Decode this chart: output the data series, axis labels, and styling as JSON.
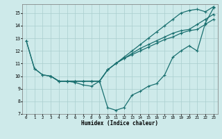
{
  "xlabel": "Humidex (Indice chaleur)",
  "bg_color": "#ceeaea",
  "grid_color": "#aacece",
  "line_color": "#1a7070",
  "xlim": [
    -0.5,
    23.5
  ],
  "ylim": [
    7,
    15.7
  ],
  "yticks": [
    7,
    8,
    9,
    10,
    11,
    12,
    13,
    14,
    15
  ],
  "xticks": [
    0,
    1,
    2,
    3,
    4,
    5,
    6,
    7,
    8,
    9,
    10,
    11,
    12,
    13,
    14,
    15,
    16,
    17,
    18,
    19,
    20,
    21,
    22,
    23
  ],
  "series1_x": [
    0,
    1,
    2,
    3,
    4,
    5,
    6,
    7,
    8,
    9,
    10,
    11,
    12,
    13,
    14,
    15,
    16,
    17,
    18,
    19,
    20,
    21,
    22,
    23
  ],
  "series1_y": [
    12.8,
    10.6,
    10.1,
    10.0,
    9.6,
    9.6,
    9.6,
    9.6,
    9.6,
    9.6,
    10.5,
    11.0,
    11.5,
    12.0,
    12.5,
    13.0,
    13.5,
    14.0,
    14.5,
    15.0,
    15.2,
    15.3,
    15.1,
    15.5
  ],
  "series2_x": [
    0,
    1,
    2,
    3,
    4,
    5,
    6,
    7,
    8,
    9,
    10,
    11,
    12,
    13,
    14,
    15,
    16,
    17,
    18,
    19,
    20,
    21,
    22,
    23
  ],
  "series2_y": [
    12.8,
    10.6,
    10.1,
    10.0,
    9.6,
    9.6,
    9.6,
    9.6,
    9.6,
    9.6,
    10.5,
    11.0,
    11.4,
    11.8,
    12.2,
    12.5,
    12.8,
    13.1,
    13.4,
    13.6,
    13.7,
    14.1,
    14.5,
    14.9
  ],
  "series3_x": [
    3,
    4,
    5,
    6,
    7,
    8,
    9,
    10,
    11,
    12,
    13,
    14,
    15,
    16,
    17,
    18,
    19,
    20,
    21,
    22,
    23
  ],
  "series3_y": [
    10.0,
    9.6,
    9.6,
    9.6,
    9.6,
    9.6,
    9.6,
    10.5,
    11.0,
    11.4,
    11.7,
    12.0,
    12.3,
    12.6,
    12.9,
    13.1,
    13.4,
    13.6,
    13.7,
    14.1,
    14.5
  ],
  "series4_x": [
    3,
    4,
    5,
    6,
    7,
    8,
    9,
    10,
    11,
    12,
    13,
    14,
    15,
    16,
    17,
    18,
    19,
    20,
    21,
    22,
    23
  ],
  "series4_y": [
    10.0,
    9.6,
    9.6,
    9.5,
    9.3,
    9.2,
    9.6,
    7.5,
    7.3,
    7.5,
    8.5,
    8.8,
    9.2,
    9.4,
    10.1,
    11.5,
    12.0,
    12.4,
    12.0,
    14.2,
    15.4
  ]
}
